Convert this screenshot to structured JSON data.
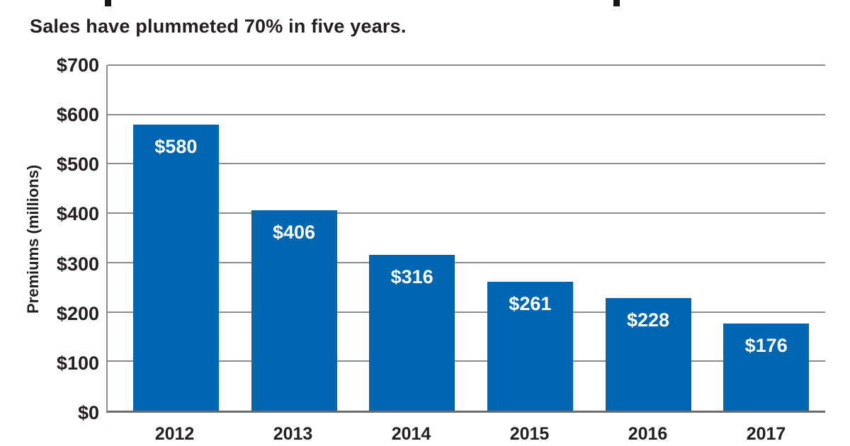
{
  "page": {
    "background": "#ffffff",
    "clipped_title": {
      "visible": true,
      "note": "headline cropped at top edge; only two letter descenders visible"
    }
  },
  "chart_data": {
    "type": "bar",
    "subtitle": "Sales have plummeted 70% in five years.",
    "categories": [
      "2012",
      "2013",
      "2014",
      "2015",
      "2016",
      "2017"
    ],
    "values": [
      580,
      406,
      316,
      261,
      228,
      176
    ],
    "bar_labels": [
      "$580",
      "$406",
      "$316",
      "$261",
      "$228",
      "$176"
    ],
    "xlabel": "",
    "ylabel": "Premiums (millions)",
    "ylim": [
      0,
      700
    ],
    "ytick_interval": 100,
    "ytick_labels": [
      "$0",
      "$100",
      "$200",
      "$300",
      "$400",
      "$500",
      "$600",
      "$700"
    ],
    "grid": "horizontal",
    "legend": "none",
    "colors": {
      "bar": "#0066b2",
      "bar_label_text": "#ffffff",
      "text": "#231f20",
      "gridline": "#8c8c8c",
      "axis_line": "#6b6b6b"
    }
  }
}
